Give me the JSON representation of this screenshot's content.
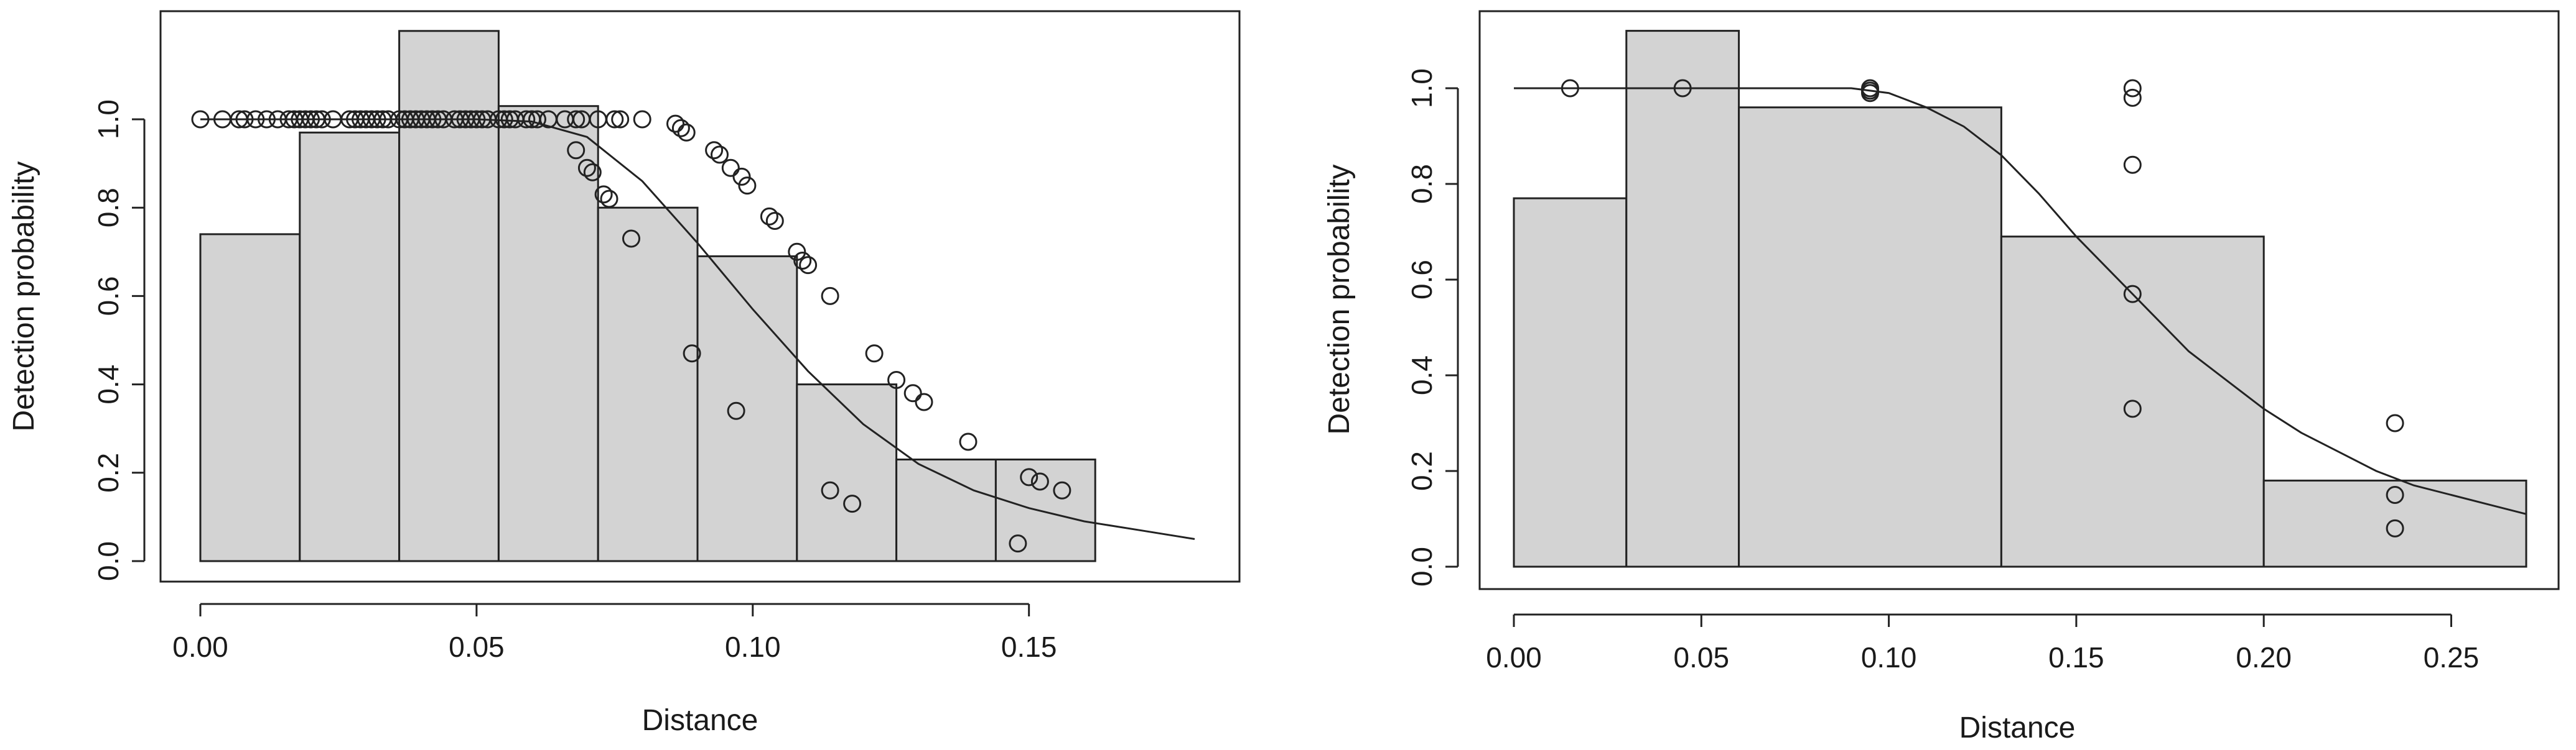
{
  "chart_data": [
    {
      "type": "bar",
      "xlabel": "Distance",
      "ylabel": "Detection probability",
      "xlim": [
        0,
        0.18
      ],
      "ylim": [
        0,
        1.2
      ],
      "x_ticks": [
        "0.00",
        "0.05",
        "0.10",
        "0.15"
      ],
      "x_tick_values": [
        0,
        0.05,
        0.1,
        0.15
      ],
      "y_ticks": [
        "0.0",
        "0.2",
        "0.4",
        "0.6",
        "0.8",
        "1.0"
      ],
      "y_tick_values": [
        0,
        0.2,
        0.4,
        0.6,
        0.8,
        1.0
      ],
      "histogram": {
        "breaks": [
          0,
          0.018,
          0.036,
          0.054,
          0.072,
          0.09,
          0.108,
          0.126,
          0.144,
          0.162
        ],
        "heights": [
          0.74,
          0.97,
          1.2,
          1.03,
          0.8,
          0.69,
          0.4,
          0.23,
          0.23
        ]
      },
      "fitted_curve": {
        "x": [
          0,
          0.02,
          0.04,
          0.05,
          0.06,
          0.07,
          0.08,
          0.09,
          0.1,
          0.11,
          0.12,
          0.13,
          0.14,
          0.15,
          0.16,
          0.17,
          0.18
        ],
        "y": [
          1.0,
          1.0,
          1.0,
          1.0,
          0.995,
          0.96,
          0.86,
          0.72,
          0.57,
          0.43,
          0.31,
          0.22,
          0.16,
          0.12,
          0.09,
          0.07,
          0.05
        ]
      },
      "points": [
        [
          0.0,
          1.0
        ],
        [
          0.004,
          1.0
        ],
        [
          0.007,
          1.0
        ],
        [
          0.008,
          1.0
        ],
        [
          0.01,
          1.0
        ],
        [
          0.012,
          1.0
        ],
        [
          0.014,
          1.0
        ],
        [
          0.016,
          1.0
        ],
        [
          0.017,
          1.0
        ],
        [
          0.018,
          1.0
        ],
        [
          0.019,
          1.0
        ],
        [
          0.02,
          1.0
        ],
        [
          0.021,
          1.0
        ],
        [
          0.022,
          1.0
        ],
        [
          0.024,
          1.0
        ],
        [
          0.027,
          1.0
        ],
        [
          0.028,
          1.0
        ],
        [
          0.029,
          1.0
        ],
        [
          0.03,
          1.0
        ],
        [
          0.031,
          1.0
        ],
        [
          0.032,
          1.0
        ],
        [
          0.033,
          1.0
        ],
        [
          0.034,
          1.0
        ],
        [
          0.036,
          1.0
        ],
        [
          0.037,
          1.0
        ],
        [
          0.038,
          1.0
        ],
        [
          0.039,
          1.0
        ],
        [
          0.04,
          1.0
        ],
        [
          0.041,
          1.0
        ],
        [
          0.042,
          1.0
        ],
        [
          0.043,
          1.0
        ],
        [
          0.044,
          1.0
        ],
        [
          0.046,
          1.0
        ],
        [
          0.047,
          1.0
        ],
        [
          0.048,
          1.0
        ],
        [
          0.049,
          1.0
        ],
        [
          0.05,
          1.0
        ],
        [
          0.051,
          1.0
        ],
        [
          0.052,
          1.0
        ],
        [
          0.054,
          1.0
        ],
        [
          0.055,
          1.0
        ],
        [
          0.056,
          1.0
        ],
        [
          0.057,
          1.0
        ],
        [
          0.059,
          1.0
        ],
        [
          0.06,
          1.0
        ],
        [
          0.061,
          1.0
        ],
        [
          0.063,
          1.0
        ],
        [
          0.066,
          1.0
        ],
        [
          0.068,
          1.0
        ],
        [
          0.069,
          1.0
        ],
        [
          0.072,
          1.0
        ],
        [
          0.075,
          1.0
        ],
        [
          0.076,
          1.0
        ],
        [
          0.08,
          1.0
        ],
        [
          0.068,
          0.93
        ],
        [
          0.07,
          0.89
        ],
        [
          0.071,
          0.88
        ],
        [
          0.073,
          0.83
        ],
        [
          0.074,
          0.82
        ],
        [
          0.078,
          0.73
        ],
        [
          0.086,
          0.99
        ],
        [
          0.087,
          0.98
        ],
        [
          0.088,
          0.97
        ],
        [
          0.089,
          0.47
        ],
        [
          0.093,
          0.93
        ],
        [
          0.094,
          0.92
        ],
        [
          0.096,
          0.89
        ],
        [
          0.097,
          0.34
        ],
        [
          0.098,
          0.87
        ],
        [
          0.099,
          0.85
        ],
        [
          0.103,
          0.78
        ],
        [
          0.104,
          0.77
        ],
        [
          0.108,
          0.7
        ],
        [
          0.109,
          0.68
        ],
        [
          0.11,
          0.67
        ],
        [
          0.114,
          0.6
        ],
        [
          0.114,
          0.16
        ],
        [
          0.118,
          0.13
        ],
        [
          0.122,
          0.47
        ],
        [
          0.126,
          0.41
        ],
        [
          0.129,
          0.38
        ],
        [
          0.131,
          0.36
        ],
        [
          0.139,
          0.27
        ],
        [
          0.148,
          0.04
        ],
        [
          0.15,
          0.19
        ],
        [
          0.152,
          0.18
        ],
        [
          0.156,
          0.16
        ]
      ]
    },
    {
      "type": "bar",
      "xlabel": "Distance",
      "ylabel": "Detection probability",
      "xlim": [
        0,
        0.27
      ],
      "ylim": [
        0,
        1.12
      ],
      "x_ticks": [
        "0.00",
        "0.05",
        "0.10",
        "0.15",
        "0.20",
        "0.25"
      ],
      "x_tick_values": [
        0,
        0.05,
        0.1,
        0.15,
        0.2,
        0.25
      ],
      "y_ticks": [
        "0.0",
        "0.2",
        "0.4",
        "0.6",
        "0.8",
        "1.0"
      ],
      "y_tick_values": [
        0,
        0.2,
        0.4,
        0.6,
        0.8,
        1.0
      ],
      "histogram": {
        "breaks": [
          0,
          0.03,
          0.06,
          0.13,
          0.2,
          0.27
        ],
        "heights": [
          0.77,
          1.12,
          0.96,
          0.69,
          0.18
        ]
      },
      "fitted_curve": {
        "x": [
          0,
          0.05,
          0.09,
          0.1,
          0.11,
          0.12,
          0.13,
          0.14,
          0.15,
          0.16,
          0.17,
          0.18,
          0.19,
          0.2,
          0.21,
          0.22,
          0.23,
          0.24,
          0.25,
          0.26,
          0.27
        ],
        "y": [
          1.0,
          1.0,
          1.0,
          0.99,
          0.96,
          0.92,
          0.86,
          0.78,
          0.69,
          0.61,
          0.53,
          0.45,
          0.39,
          0.33,
          0.28,
          0.24,
          0.2,
          0.17,
          0.15,
          0.13,
          0.11
        ]
      },
      "points": [
        [
          0.015,
          1.0
        ],
        [
          0.045,
          1.0
        ],
        [
          0.095,
          1.0
        ],
        [
          0.095,
          0.995
        ],
        [
          0.095,
          0.99
        ],
        [
          0.165,
          1.0
        ],
        [
          0.165,
          0.98
        ],
        [
          0.165,
          0.84
        ],
        [
          0.165,
          0.57
        ],
        [
          0.165,
          0.33
        ],
        [
          0.235,
          0.3
        ],
        [
          0.235,
          0.15
        ],
        [
          0.235,
          0.08
        ]
      ]
    }
  ]
}
